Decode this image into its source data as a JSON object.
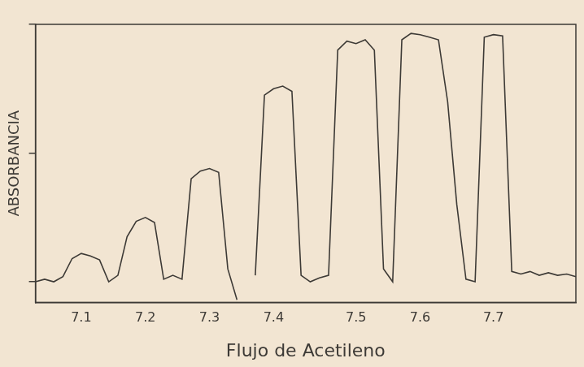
{
  "chart_data": {
    "type": "line",
    "x_label": "Flujo de Acetileno",
    "y_label": "ABSORBANCIA",
    "categories": [
      null,
      null,
      null,
      null,
      null,
      "7.1",
      null,
      null,
      null,
      null,
      null,
      null,
      "7.2",
      null,
      null,
      null,
      null,
      null,
      null,
      "7.3",
      null,
      null,
      null,
      null,
      null,
      null,
      "7.4",
      null,
      null,
      null,
      null,
      null,
      null,
      null,
      null,
      "7.5",
      null,
      null,
      null,
      null,
      null,
      null,
      "7.6",
      null,
      null,
      null,
      null,
      null,
      null,
      null,
      "7.7",
      null,
      null,
      null,
      null,
      null,
      null,
      null,
      null,
      null
    ],
    "values": [
      0.0,
      0.02,
      0.0,
      0.04,
      0.18,
      0.22,
      0.2,
      0.17,
      0.0,
      0.05,
      0.35,
      0.47,
      0.5,
      0.46,
      0.02,
      0.05,
      0.02,
      0.8,
      0.86,
      0.88,
      0.85,
      0.1,
      -0.14,
      null,
      0.05,
      1.45,
      1.5,
      1.52,
      1.48,
      0.05,
      0.0,
      0.03,
      0.05,
      1.8,
      1.87,
      1.85,
      1.88,
      1.8,
      0.1,
      0.0,
      1.88,
      1.93,
      1.92,
      1.9,
      1.88,
      1.4,
      0.6,
      0.02,
      0.0,
      1.9,
      1.92,
      1.91,
      0.08,
      0.06,
      0.08,
      0.05,
      0.07,
      0.05,
      0.06,
      0.04
    ],
    "color": "#3d3a36",
    "marker": "none",
    "ylim": [
      -0.16,
      2
    ],
    "yticks": [
      0,
      1,
      2
    ],
    "grid": false,
    "tick_labels": "x"
  }
}
